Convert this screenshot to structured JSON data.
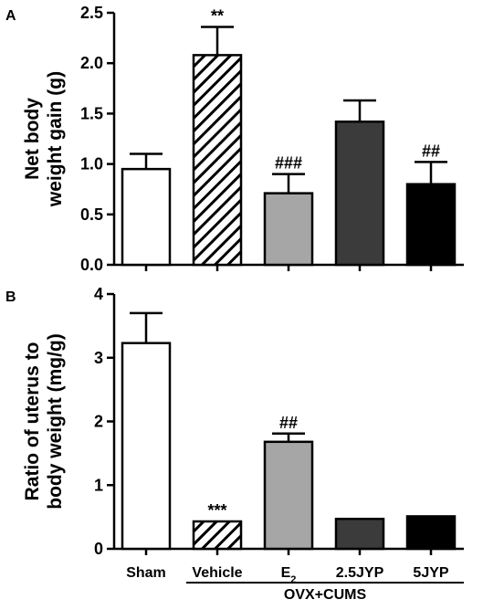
{
  "figure": {
    "x_categories": [
      "Sham",
      "Vehicle",
      "E",
      "2.5JYP",
      "5JYP"
    ],
    "e2_subscript": "2",
    "group_label": "OVX+CUMS"
  },
  "chart_data": [
    {
      "type": "bar",
      "panel": "A",
      "ylabel_lines": [
        "Net body",
        "weight gain (g)"
      ],
      "ylim": [
        0,
        2.5
      ],
      "yticks": [
        "0.0",
        "0.5",
        "1.0",
        "1.5",
        "2.0",
        "2.5"
      ],
      "ytick_values": [
        0,
        0.5,
        1.0,
        1.5,
        2.0,
        2.5
      ],
      "values": [
        0.95,
        2.08,
        0.71,
        1.42,
        0.8
      ],
      "errors": [
        0.15,
        0.28,
        0.19,
        0.21,
        0.22
      ],
      "significance": [
        "",
        "**",
        "###",
        "",
        "##"
      ]
    },
    {
      "type": "bar",
      "panel": "B",
      "ylabel_lines": [
        "Ratio of uterus to",
        "body weight (mg/g)"
      ],
      "ylim": [
        0,
        4
      ],
      "yticks": [
        "0",
        "1",
        "2",
        "3",
        "4"
      ],
      "ytick_values": [
        0,
        1,
        2,
        3,
        4
      ],
      "values": [
        3.23,
        0.43,
        1.68,
        0.47,
        0.51
      ],
      "errors": [
        0.47,
        0.0,
        0.13,
        0.0,
        0.0
      ],
      "significance": [
        "",
        "***",
        "##",
        "",
        ""
      ]
    }
  ],
  "colors": {
    "bar_fills": [
      "#ffffff",
      "hatch",
      "#a6a6a6",
      "#3b3b3b",
      "#000000"
    ],
    "stroke": "#000000"
  }
}
